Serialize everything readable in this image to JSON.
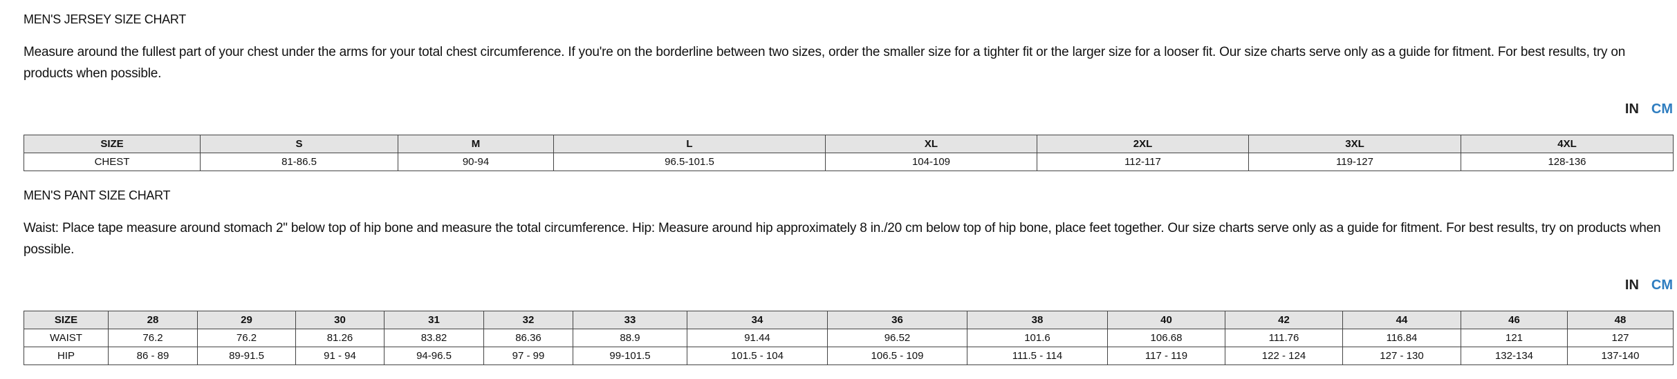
{
  "sections": [
    {
      "title": "MEN'S JERSEY SIZE CHART",
      "description": "Measure around the fullest part of your chest under the arms for your total chest circumference. If you're on the borderline between two sizes, order the smaller size for a tighter fit or the larger size for a looser fit.  Our size charts serve only as a guide for fitment. For best results, try on products when possible.",
      "units": [
        "IN",
        "CM"
      ],
      "table": {
        "header": [
          "SIZE",
          "S",
          "M",
          "L",
          "XL",
          "2XL",
          "3XL",
          "4XL"
        ],
        "rows": [
          [
            "CHEST",
            "81-86.5",
            "90-94",
            "96.5-101.5",
            "104-109",
            "112-117",
            "119-127",
            "128-136"
          ]
        ]
      }
    },
    {
      "title": "MEN'S PANT SIZE CHART",
      "description": "Waist: Place tape measure around stomach 2\" below top of hip bone and measure the total circumference. Hip: Measure around hip approximately 8 in./20 cm below top of hip bone, place feet together. Our size charts serve only as a guide for fitment. For best results, try on products when possible.",
      "units": [
        "IN",
        "CM"
      ],
      "table": {
        "header": [
          "SIZE",
          "28",
          "29",
          "30",
          "31",
          "32",
          "33",
          "34",
          "36",
          "38",
          "40",
          "42",
          "44",
          "46",
          "48"
        ],
        "rows": [
          [
            "WAIST",
            "76.2",
            "76.2",
            "81.26",
            "83.82",
            "86.36",
            "88.9",
            "91.44",
            "96.52",
            "101.6",
            "106.68",
            "111.76",
            "116.84",
            "121",
            "127"
          ],
          [
            "HIP",
            "86 - 89",
            "89-91.5",
            "91 - 94",
            "94-96.5",
            "97 - 99",
            "99-101.5",
            "101.5 - 104",
            "106.5 - 109",
            "111.5 - 114",
            "117 - 119",
            "122 - 124",
            "127 - 130",
            "132-134",
            "137-140"
          ]
        ]
      }
    }
  ]
}
